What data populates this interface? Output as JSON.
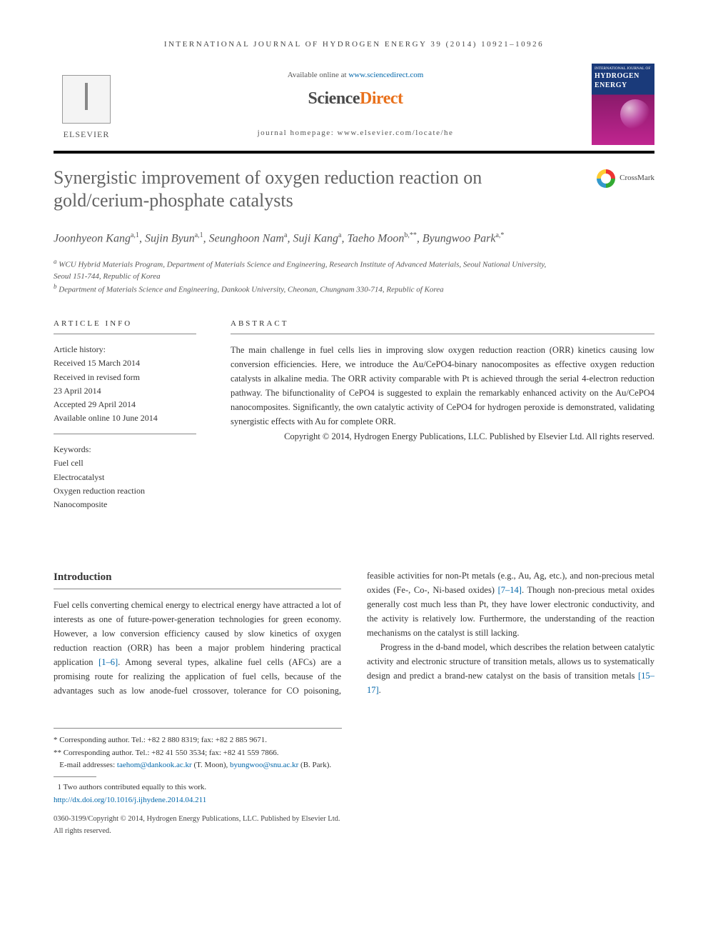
{
  "running_head": "INTERNATIONAL JOURNAL OF HYDROGEN ENERGY 39 (2014) 10921–10926",
  "masthead": {
    "elsevier": "ELSEVIER",
    "available_prefix": "Available online at ",
    "available_link": "www.sciencedirect.com",
    "sd_logo_left": "Science",
    "sd_logo_right": "Direct",
    "homepage": "journal homepage: www.elsevier.com/locate/he",
    "cover_top": "INTERNATIONAL JOURNAL OF",
    "cover_title1": "HYDROGEN",
    "cover_title2": "ENERGY"
  },
  "crossmark": "CrossMark",
  "title": "Synergistic improvement of oxygen reduction reaction on gold/cerium-phosphate catalysts",
  "authors_html": "Joonhyeon Kang<sup>a,1</sup>, Sujin Byun<sup>a,1</sup>, Seunghoon Nam<sup>a</sup>, Suji Kang<sup>a</sup>, Taeho Moon<sup>b,**</sup>, Byungwoo Park<sup>a,*</sup>",
  "affiliations": {
    "a": "WCU Hybrid Materials Program, Department of Materials Science and Engineering, Research Institute of Advanced Materials, Seoul National University, Seoul 151-744, Republic of Korea",
    "b": "Department of Materials Science and Engineering, Dankook University, Cheonan, Chungnam 330-714, Republic of Korea"
  },
  "section_heads": {
    "article_info": "ARTICLE INFO",
    "abstract": "ABSTRACT",
    "introduction": "Introduction"
  },
  "history": {
    "label": "Article history:",
    "received": "Received 15 March 2014",
    "revised1": "Received in revised form",
    "revised2": "23 April 2014",
    "accepted": "Accepted 29 April 2014",
    "online": "Available online 10 June 2014"
  },
  "keywords": {
    "label": "Keywords:",
    "items": [
      "Fuel cell",
      "Electrocatalyst",
      "Oxygen reduction reaction",
      "Nanocomposite"
    ]
  },
  "abstract": "The main challenge in fuel cells lies in improving slow oxygen reduction reaction (ORR) kinetics causing low conversion efficiencies. Here, we introduce the Au/CePO4-binary nanocomposites as effective oxygen reduction catalysts in alkaline media. The ORR activity comparable with Pt is achieved through the serial 4-electron reduction pathway. The bifunctionality of CePO4 is suggested to explain the remarkably enhanced activity on the Au/CePO4 nanocomposites. Significantly, the own catalytic activity of CePO4 for hydrogen peroxide is demonstrated, validating synergistic effects with Au for complete ORR.",
  "abstract_copyright": "Copyright © 2014, Hydrogen Energy Publications, LLC. Published by Elsevier Ltd. All rights reserved.",
  "body": {
    "p1a": "Fuel cells converting chemical energy to electrical energy have attracted a lot of interests as one of future-power-generation technologies for green economy. However, a low conversion efficiency caused by slow kinetics of oxygen reduction reaction (ORR) has been a major problem hindering practical application ",
    "p1_ref": "[1–6]",
    "p1b": ". Among several types, alkaline fuel cells (AFCs) are a promising route for realizing the application of fuel cells, because of the advantages such as low anode-fuel crossover, tolerance for CO poisoning, feasible activities for non-Pt metals (e.g., Au, Ag, etc.), and non-precious metal oxides (Fe-, Co-, Ni-based oxides) ",
    "p1_ref2": "[7–14]",
    "p1c": ". Though non-precious metal oxides generally cost much less than Pt, they have lower electronic conductivity, and the activity is relatively low. Furthermore, the understanding of the reaction mechanisms on the catalyst is still lacking.",
    "p2a": "Progress in the d-band model, which describes the relation between catalytic activity and electronic structure of transition metals, allows us to systematically design and predict a brand-new catalyst on the basis of transition metals ",
    "p2_ref": "[15–17]",
    "p2b": "."
  },
  "footnotes": {
    "l1": "* Corresponding author. Tel.: +82 2 880 8319; fax: +82 2 885 9671.",
    "l2": "** Corresponding author. Tel.: +82 41 550 3534; fax: +82 41 559 7866.",
    "emails_label": "E-mail addresses: ",
    "email1": "taehom@dankook.ac.kr",
    "email1_who": " (T. Moon), ",
    "email2": "byungwoo@snu.ac.kr",
    "email2_who": " (B. Park).",
    "equal": "1 Two authors contributed equally to this work.",
    "doi": "http://dx.doi.org/10.1016/j.ijhydene.2014.04.211",
    "issn_copyright": "0360-3199/Copyright © 2014, Hydrogen Energy Publications, LLC. Published by Elsevier Ltd. All rights reserved."
  },
  "colors": {
    "link": "#0066aa",
    "title_gray": "#626262",
    "orange": "#e9711c"
  }
}
